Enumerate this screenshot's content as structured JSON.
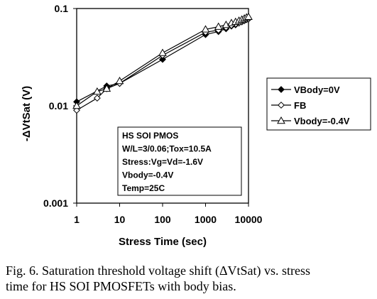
{
  "chart_data": {
    "type": "line",
    "x_scale": "log",
    "y_scale": "log",
    "xlabel": "Stress Time (sec)",
    "ylabel": "-ΔVtSat (V)",
    "xlim": [
      1,
      10000
    ],
    "ylim": [
      0.001,
      0.1
    ],
    "x_ticks": [
      "1",
      "10",
      "100",
      "1000",
      "10000"
    ],
    "y_ticks": [
      "0.001",
      "0.01",
      "0.1"
    ],
    "grid": false,
    "legend_position": "right",
    "annotation_box": [
      "HS SOI PMOS",
      "W/L=3/0.06;Tox=10.5A",
      "Stress:Vg=Vd=-1.6V",
      "Vbody=-0.4V",
      "Temp=25C"
    ],
    "series": [
      {
        "name": "VBody=0V",
        "marker": "filled-diamond",
        "x": [
          1,
          5,
          10,
          100,
          1000,
          2000,
          3000,
          4000,
          5000,
          6000,
          7000,
          8000,
          9000,
          10000
        ],
        "y": [
          0.011,
          0.016,
          0.017,
          0.03,
          0.054,
          0.058,
          0.062,
          0.066,
          0.068,
          0.071,
          0.073,
          0.075,
          0.077,
          0.079
        ]
      },
      {
        "name": "FB",
        "marker": "open-diamond",
        "x": [
          1,
          3,
          5,
          10,
          100,
          1000,
          2000,
          3000,
          4000,
          5000,
          6000,
          7000,
          8000,
          9000,
          10000
        ],
        "y": [
          0.009,
          0.012,
          0.015,
          0.017,
          0.033,
          0.057,
          0.06,
          0.064,
          0.067,
          0.069,
          0.071,
          0.073,
          0.075,
          0.077,
          0.078
        ]
      },
      {
        "name": "Vbody=-0.4V",
        "marker": "open-triangle",
        "x": [
          1,
          3,
          5,
          10,
          100,
          1000,
          2000,
          3000,
          4000,
          5000,
          6000,
          7000,
          8000,
          9000,
          10000
        ],
        "y": [
          0.01,
          0.014,
          0.015,
          0.018,
          0.035,
          0.061,
          0.065,
          0.068,
          0.071,
          0.073,
          0.075,
          0.077,
          0.079,
          0.081,
          0.082
        ]
      }
    ]
  },
  "caption": {
    "line1": "Fig. 6. Saturation threshold voltage shift (ΔVtSat) vs. stress",
    "line2": "time for HS SOI PMOSFETs with body bias."
  }
}
